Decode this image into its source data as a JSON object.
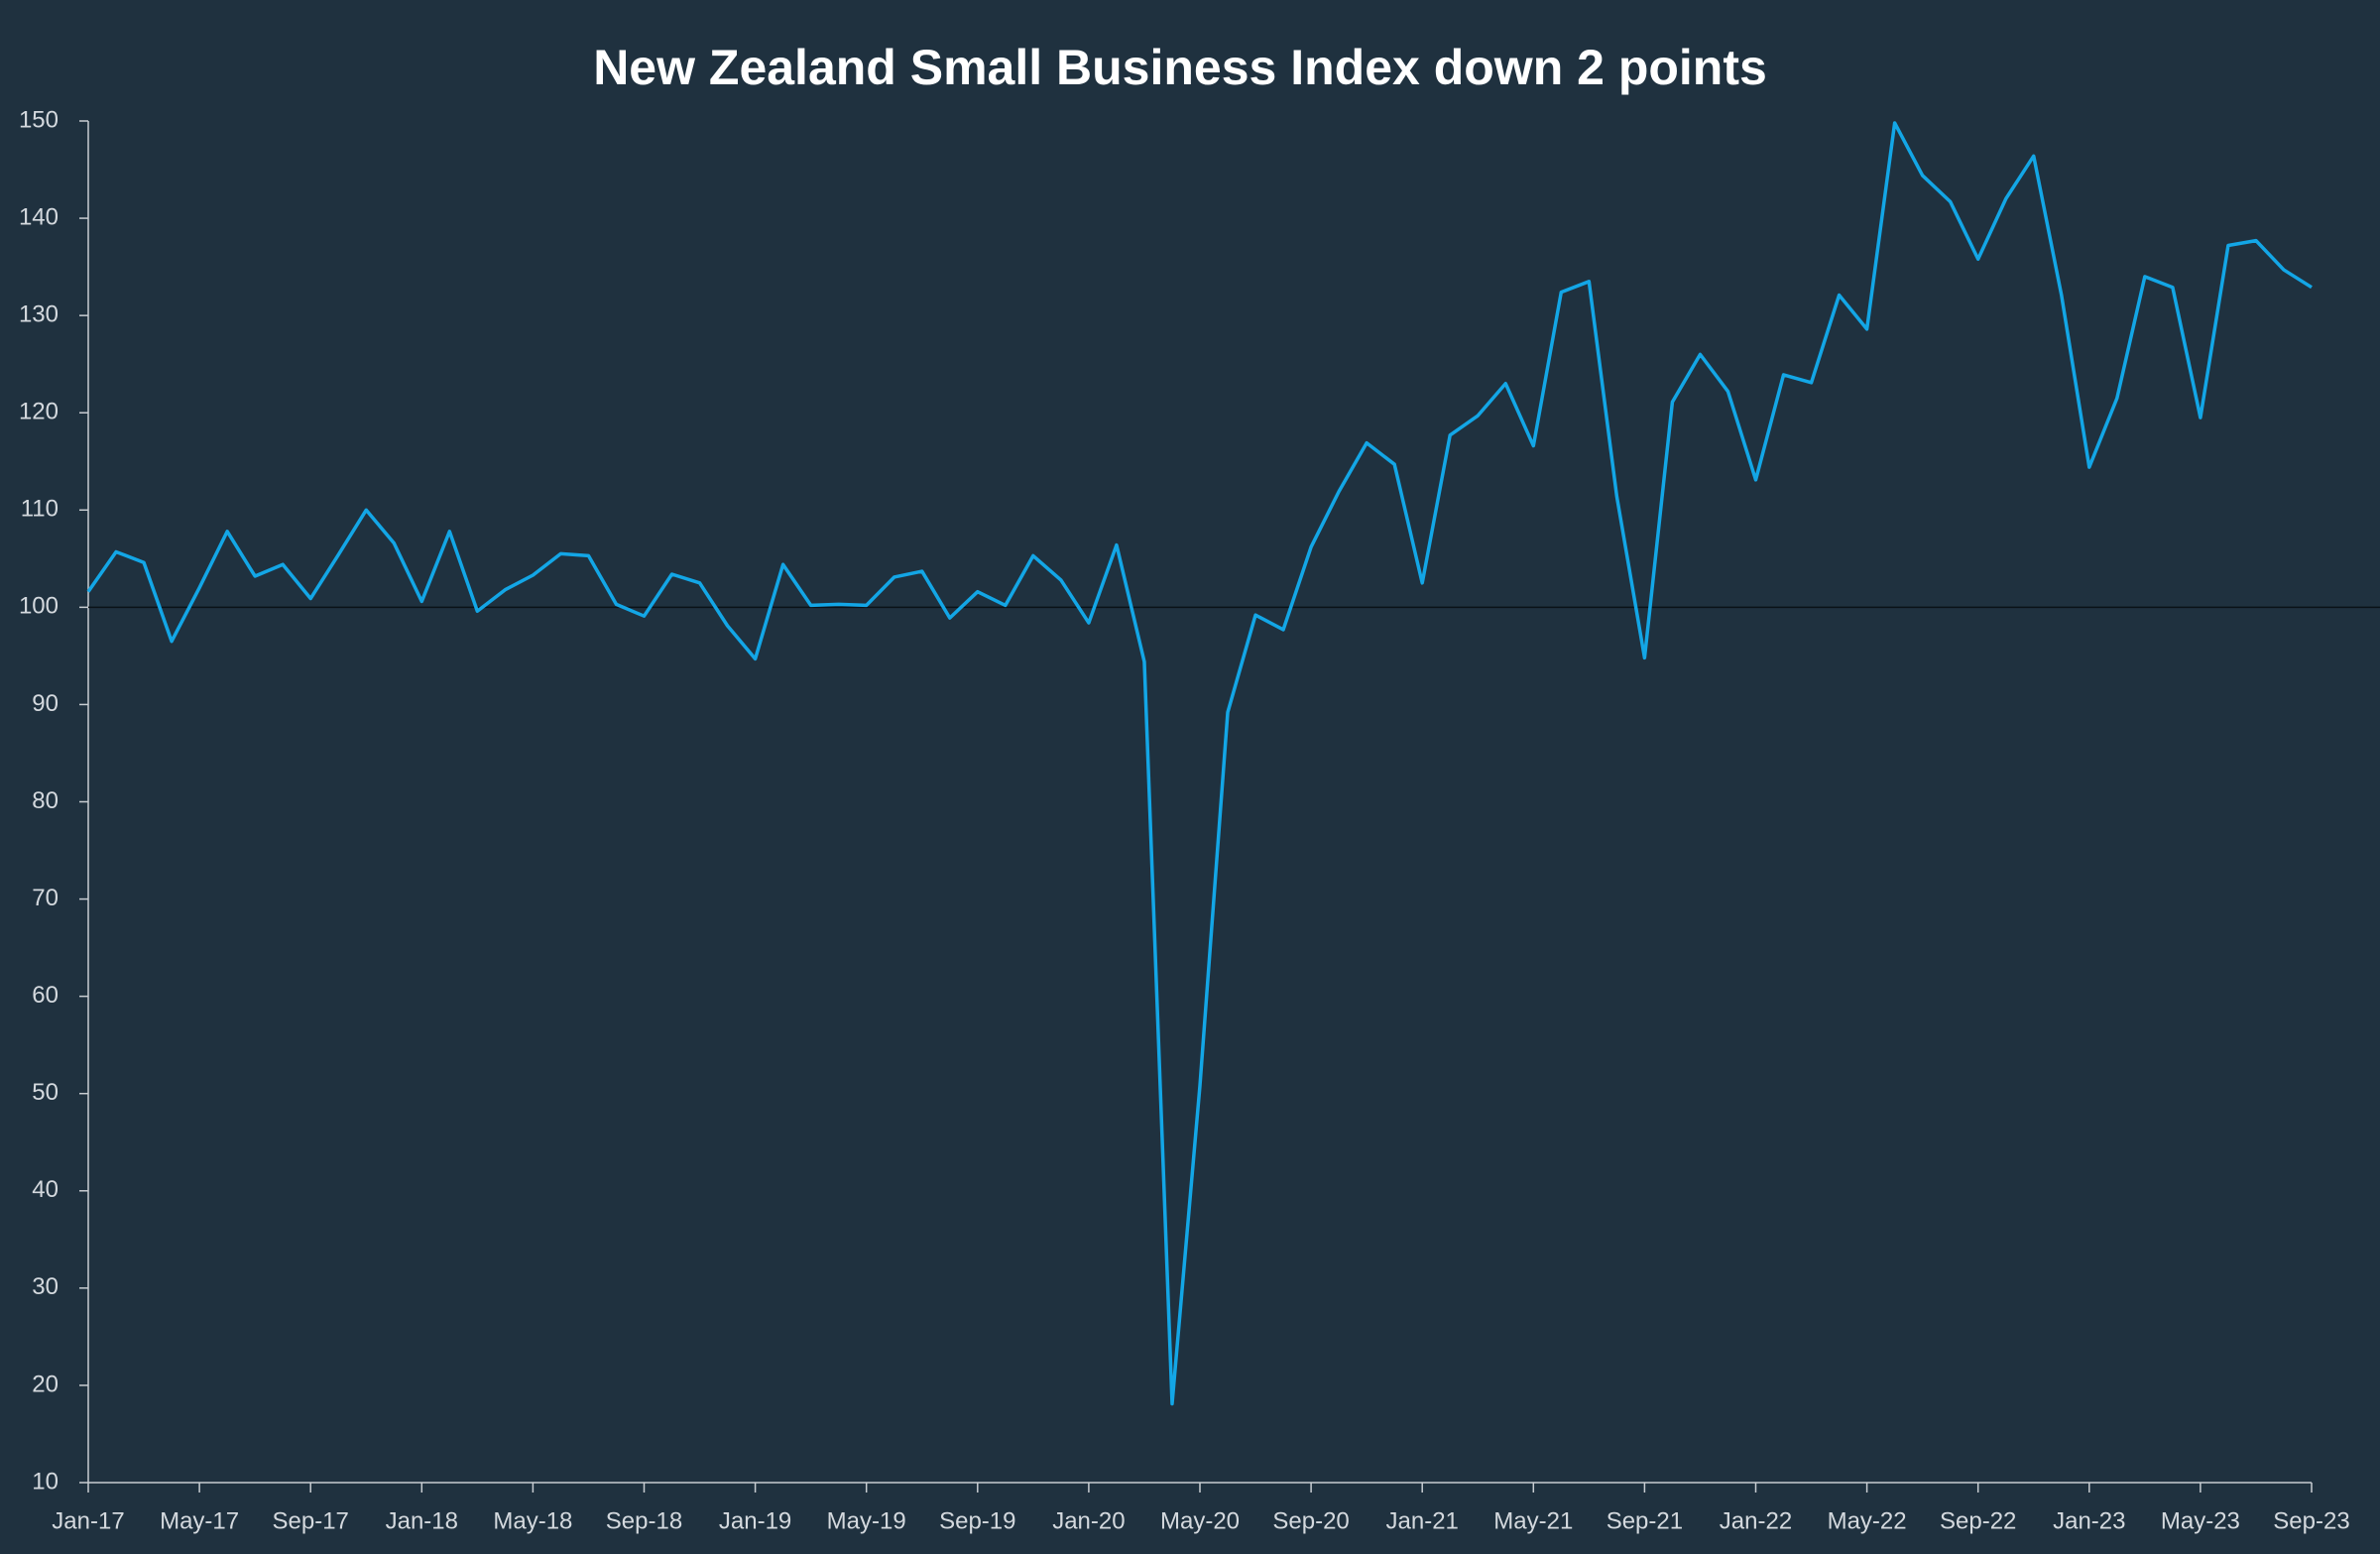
{
  "chart_data": {
    "type": "line",
    "title": "New Zealand Small Business Index down 2 points",
    "categories": [
      "Jan-17",
      null,
      null,
      null,
      "May-17",
      null,
      null,
      null,
      "Sep-17",
      null,
      null,
      null,
      "Jan-18",
      null,
      null,
      null,
      "May-18",
      null,
      null,
      null,
      "Sep-18",
      null,
      null,
      null,
      "Jan-19",
      null,
      null,
      null,
      "May-19",
      null,
      null,
      null,
      "Sep-19",
      null,
      null,
      null,
      "Jan-20",
      null,
      null,
      null,
      "May-20",
      null,
      null,
      null,
      "Sep-20",
      null,
      null,
      null,
      "Jan-21",
      null,
      null,
      null,
      "May-21",
      null,
      null,
      null,
      "Sep-21",
      null,
      null,
      null,
      "Jan-22",
      null,
      null,
      null,
      "May-22",
      null,
      null,
      null,
      "Sep-22",
      null,
      null,
      null,
      "Jan-23",
      null,
      null,
      null,
      "May-23",
      null,
      null,
      null,
      "Sep-23"
    ],
    "values": [
      101.6,
      105.7,
      104.6,
      96.5,
      102,
      107.8,
      103.2,
      104.4,
      100.9,
      105.4,
      110,
      106.6,
      100.6,
      107.8,
      99.6,
      101.8,
      103.3,
      105.5,
      105.3,
      100.3,
      99.1,
      103.4,
      102.5,
      98.1,
      94.7,
      104.4,
      100.2,
      100.3,
      100.2,
      103.1,
      103.7,
      98.9,
      101.6,
      100.2,
      105.3,
      102.8,
      98.4,
      106.4,
      94.4,
      18.1,
      50.8,
      89.2,
      99.2,
      97.7,
      106.2,
      111.9,
      116.9,
      114.7,
      102.5,
      117.7,
      119.7,
      123,
      116.6,
      132.4,
      133.5,
      111.4,
      94.8,
      121.1,
      126,
      122.2,
      113.1,
      123.9,
      123.1,
      132.1,
      128.6,
      149.8,
      144.4,
      141.7,
      135.8,
      142,
      146.4,
      132.1,
      114.4,
      121.5,
      134,
      132.9,
      119.5,
      137.2,
      137.7,
      134.7,
      132.9
    ],
    "color": "#13a6e6",
    "ylim": [
      10,
      150
    ],
    "yticks": [
      10,
      20,
      30,
      40,
      50,
      60,
      70,
      80,
      90,
      100,
      110,
      120,
      130,
      140,
      150
    ],
    "reference_line": 100
  }
}
